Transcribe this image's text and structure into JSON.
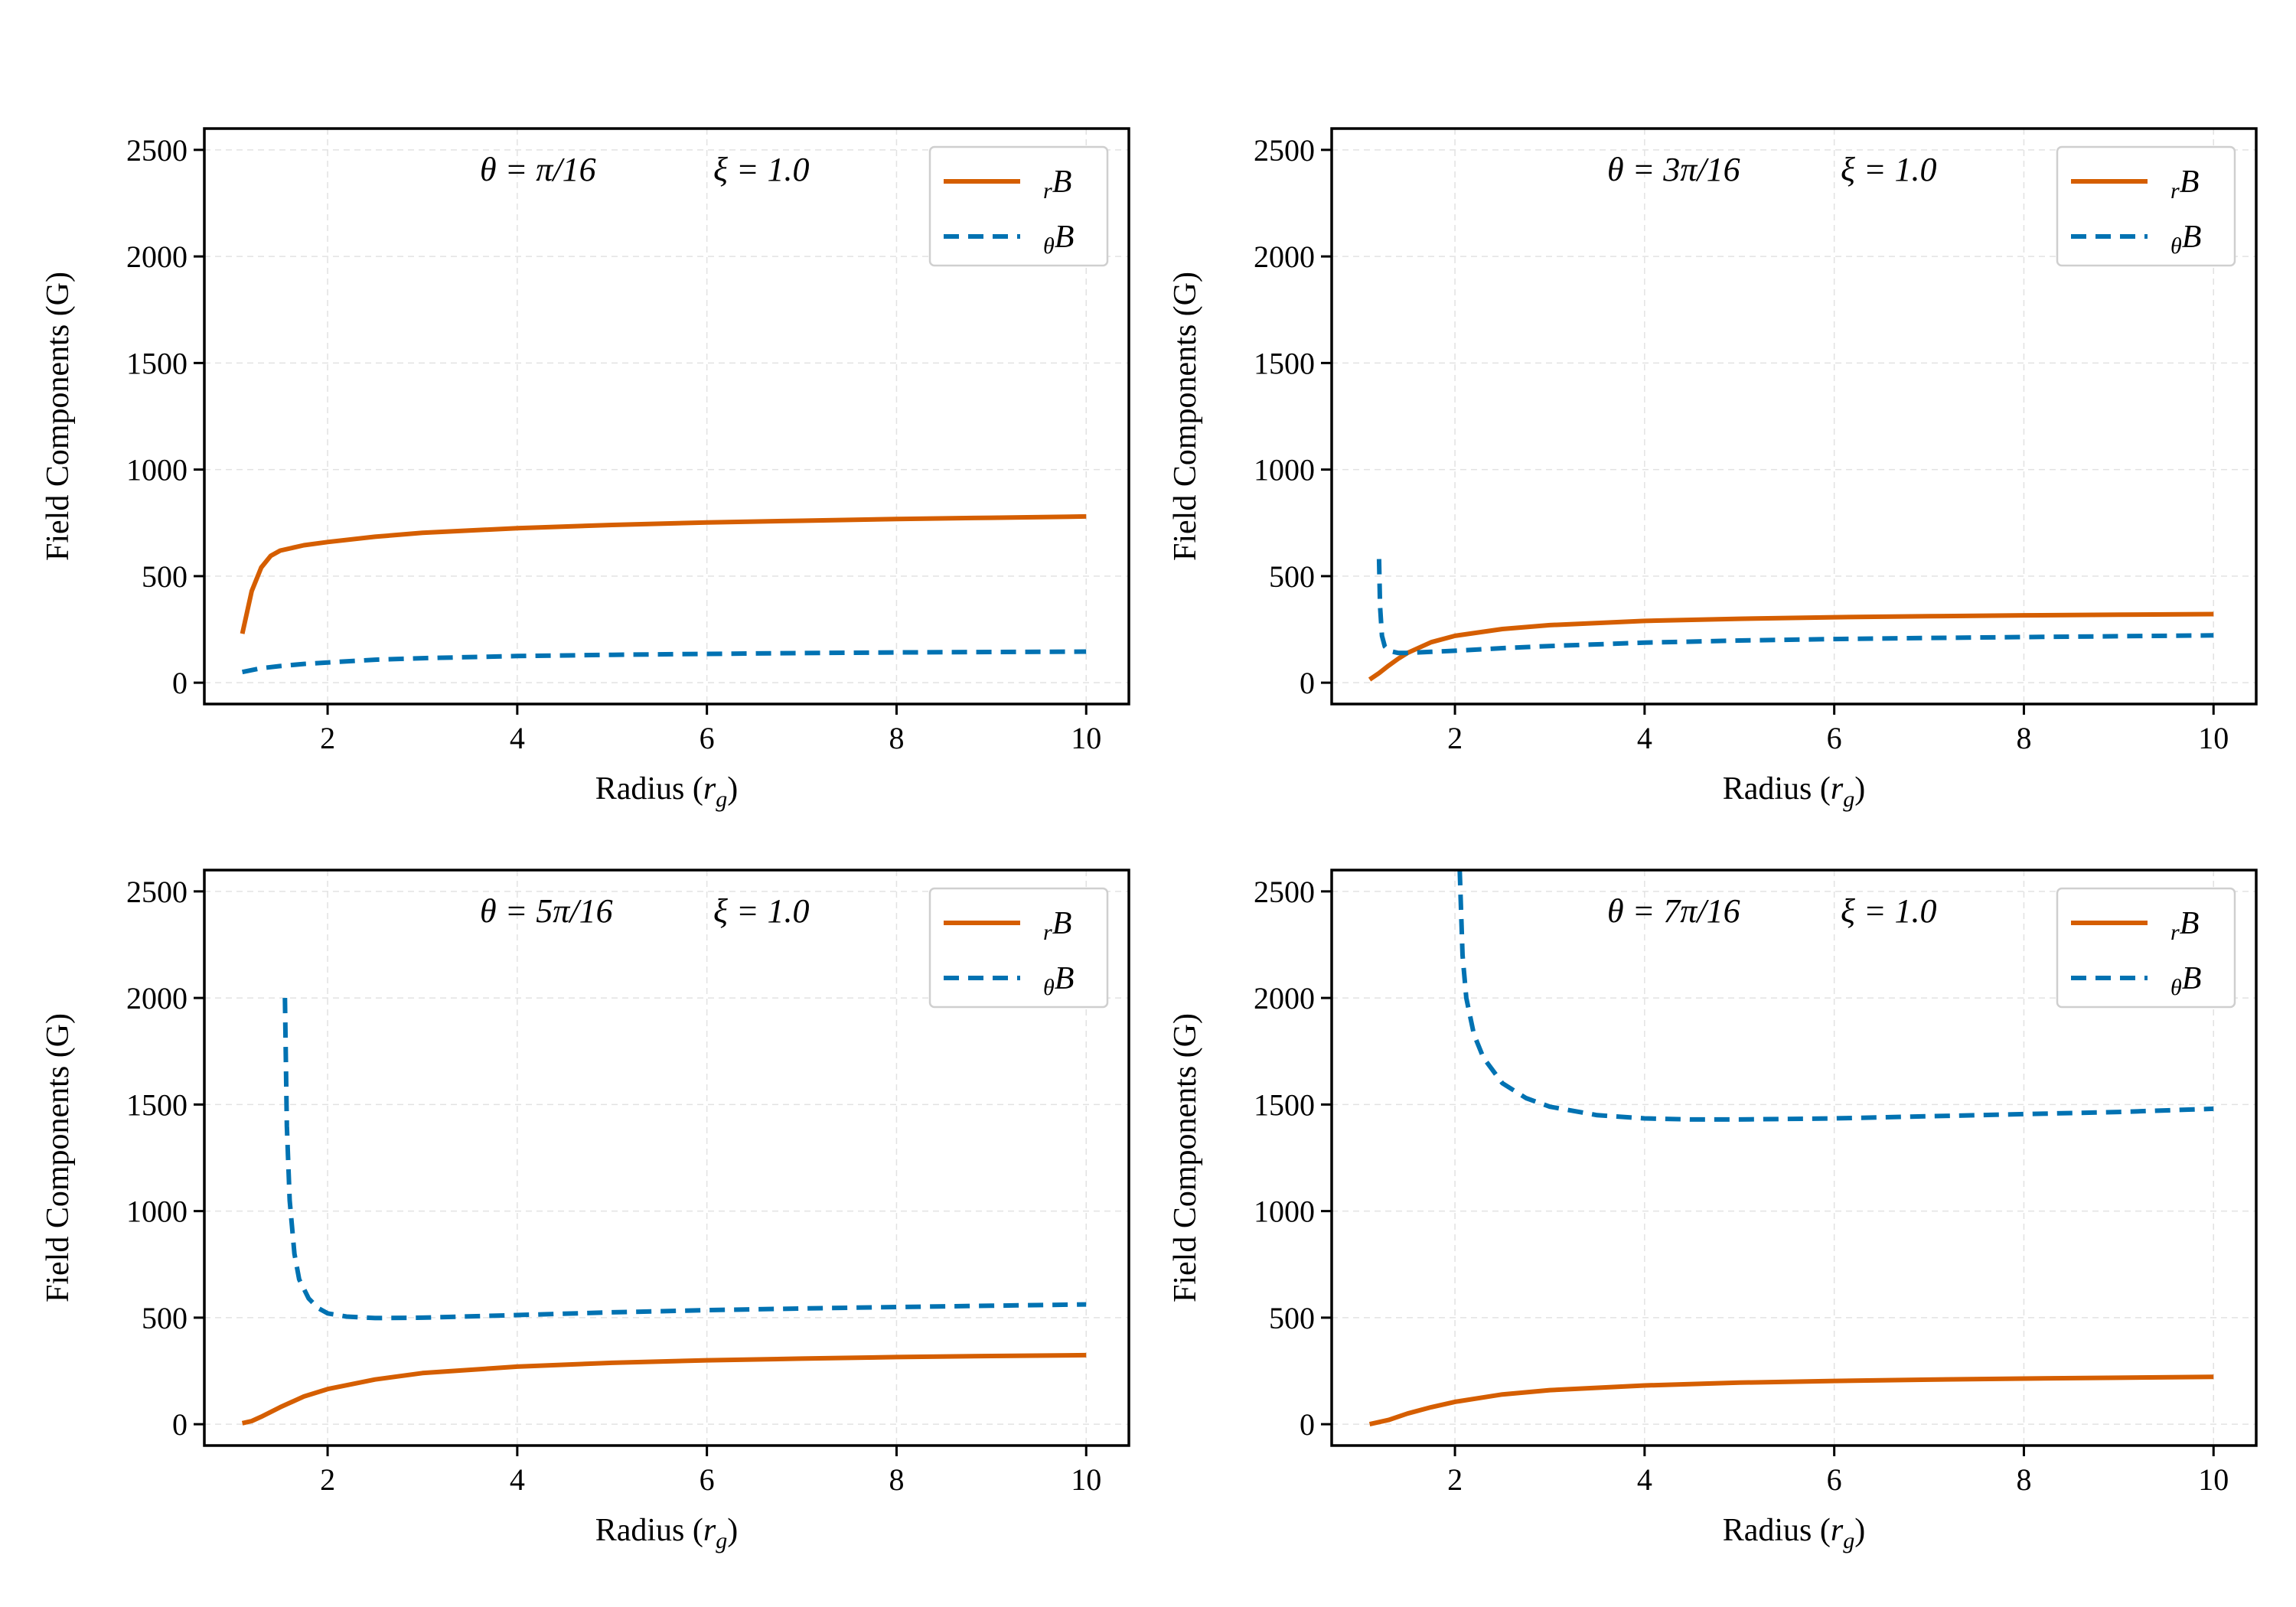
{
  "colors": {
    "br": "#d55e00",
    "btheta": "#0072b2"
  },
  "chart_data": [
    {
      "type": "line",
      "annotation_theta": "θ = π/16",
      "annotation_xi": "ξ = 1.0",
      "xlabel_main": "Radius (",
      "xlabel_sym": "r",
      "xlabel_sub": "g",
      "xlabel_close": ")",
      "ylabel": "Field Components (G)",
      "xlim": [
        0.7,
        10.45
      ],
      "ylim": [
        -100,
        2600
      ],
      "xticks": [
        2,
        4,
        6,
        8,
        10
      ],
      "yticks": [
        0,
        500,
        1000,
        1500,
        2000,
        2500
      ],
      "grid": true,
      "legend_position": "top-right",
      "series": [
        {
          "name_sub": "r",
          "name_main": "B",
          "style": "solid",
          "x": [
            1.1,
            1.2,
            1.3,
            1.4,
            1.5,
            1.75,
            2,
            2.5,
            3,
            4,
            5,
            6,
            7,
            8,
            9,
            10
          ],
          "y": [
            230,
            430,
            540,
            595,
            620,
            645,
            660,
            685,
            703,
            725,
            740,
            752,
            760,
            768,
            774,
            780
          ]
        },
        {
          "name_sub": "θ",
          "name_main": "B",
          "style": "dashed",
          "x": [
            1.1,
            1.3,
            1.5,
            1.75,
            2,
            2.5,
            3,
            4,
            5,
            6,
            7,
            8,
            9,
            10
          ],
          "y": [
            50,
            68,
            78,
            88,
            95,
            108,
            115,
            125,
            131,
            135,
            139,
            142,
            144,
            146
          ]
        }
      ]
    },
    {
      "type": "line",
      "annotation_theta": "θ = 3π/16",
      "annotation_xi": "ξ = 1.0",
      "xlabel_main": "Radius (",
      "xlabel_sym": "r",
      "xlabel_sub": "g",
      "xlabel_close": ")",
      "ylabel": "Field Components (G)",
      "xlim": [
        0.7,
        10.45
      ],
      "ylim": [
        -100,
        2600
      ],
      "xticks": [
        2,
        4,
        6,
        8,
        10
      ],
      "yticks": [
        0,
        500,
        1000,
        1500,
        2000,
        2500
      ],
      "grid": true,
      "legend_position": "top-right",
      "series": [
        {
          "name_sub": "r",
          "name_main": "B",
          "style": "solid",
          "x": [
            1.1,
            1.2,
            1.3,
            1.4,
            1.5,
            1.75,
            2,
            2.5,
            3,
            4,
            5,
            6,
            7,
            8,
            9,
            10
          ],
          "y": [
            15,
            45,
            80,
            112,
            140,
            190,
            220,
            252,
            270,
            290,
            300,
            307,
            312,
            316,
            319,
            322
          ]
        },
        {
          "name_sub": "θ",
          "name_main": "B",
          "style": "dashed",
          "x": [
            1.2,
            1.21,
            1.23,
            1.26,
            1.3,
            1.4,
            1.5,
            1.75,
            2,
            2.5,
            3,
            4,
            5,
            6,
            7,
            8,
            9,
            10
          ],
          "y": [
            580,
            360,
            220,
            170,
            150,
            140,
            140,
            145,
            150,
            162,
            172,
            188,
            198,
            205,
            210,
            214,
            218,
            222
          ]
        }
      ]
    },
    {
      "type": "line",
      "annotation_theta": "θ = 5π/16",
      "annotation_xi": "ξ = 1.0",
      "xlabel_main": "Radius (",
      "xlabel_sym": "r",
      "xlabel_sub": "g",
      "xlabel_close": ")",
      "ylabel": "Field Components (G)",
      "xlim": [
        0.7,
        10.45
      ],
      "ylim": [
        -100,
        2600
      ],
      "xticks": [
        2,
        4,
        6,
        8,
        10
      ],
      "yticks": [
        0,
        500,
        1000,
        1500,
        2000,
        2500
      ],
      "grid": true,
      "legend_position": "top-right",
      "series": [
        {
          "name_sub": "r",
          "name_main": "B",
          "style": "solid",
          "x": [
            1.1,
            1.2,
            1.3,
            1.5,
            1.75,
            2,
            2.5,
            3,
            4,
            5,
            6,
            7,
            8,
            9,
            10
          ],
          "y": [
            5,
            15,
            35,
            80,
            130,
            165,
            210,
            240,
            270,
            288,
            300,
            308,
            315,
            320,
            324
          ]
        },
        {
          "name_sub": "θ",
          "name_main": "B",
          "style": "dashed",
          "x": [
            1.55,
            1.57,
            1.6,
            1.65,
            1.7,
            1.8,
            1.9,
            2,
            2.2,
            2.5,
            3,
            4,
            5,
            6,
            7,
            8,
            9,
            10
          ],
          "y": [
            2000,
            1400,
            1050,
            800,
            680,
            590,
            545,
            520,
            505,
            498,
            500,
            512,
            525,
            535,
            543,
            550,
            556,
            562
          ]
        }
      ]
    },
    {
      "type": "line",
      "annotation_theta": "θ = 7π/16",
      "annotation_xi": "ξ = 1.0",
      "xlabel_main": "Radius (",
      "xlabel_sym": "r",
      "xlabel_sub": "g",
      "xlabel_close": ")",
      "ylabel": "Field Components (G)",
      "xlim": [
        0.7,
        10.45
      ],
      "ylim": [
        -100,
        2600
      ],
      "xticks": [
        2,
        4,
        6,
        8,
        10
      ],
      "yticks": [
        0,
        500,
        1000,
        1500,
        2000,
        2500
      ],
      "grid": true,
      "legend_position": "top-right",
      "series": [
        {
          "name_sub": "r",
          "name_main": "B",
          "style": "solid",
          "x": [
            1.1,
            1.3,
            1.5,
            1.75,
            2,
            2.5,
            3,
            4,
            5,
            6,
            7,
            8,
            9,
            10
          ],
          "y": [
            0,
            20,
            50,
            80,
            105,
            140,
            160,
            182,
            195,
            203,
            209,
            214,
            218,
            222
          ]
        },
        {
          "name_sub": "θ",
          "name_main": "B",
          "style": "dashed",
          "x": [
            2.05,
            2.08,
            2.12,
            2.2,
            2.3,
            2.5,
            2.75,
            3,
            3.5,
            4,
            4.5,
            5,
            6,
            7,
            8,
            9,
            10
          ],
          "y": [
            2600,
            2200,
            2000,
            1830,
            1720,
            1600,
            1530,
            1490,
            1450,
            1435,
            1430,
            1430,
            1435,
            1445,
            1455,
            1465,
            1480
          ]
        }
      ]
    }
  ]
}
